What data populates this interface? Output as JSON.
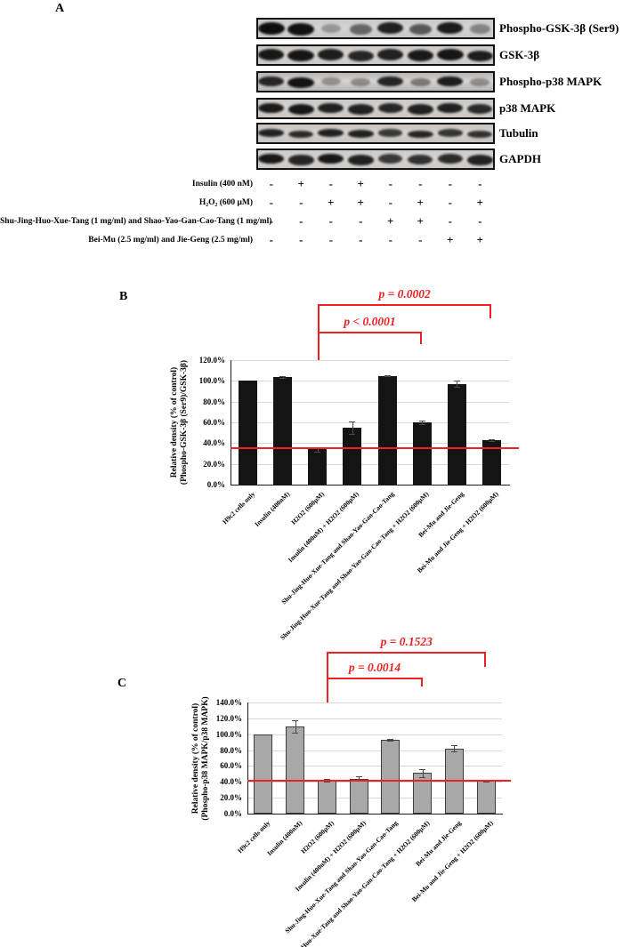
{
  "figure": {
    "panel_a_label": "A",
    "panel_b_label": "B",
    "panel_c_label": "C"
  },
  "panelA": {
    "blots": [
      {
        "label": "Phospho-GSK-3β (Ser9)",
        "bg": "#cbc9c7",
        "band_h": 14,
        "bands": [
          1.0,
          0.98,
          0.3,
          0.55,
          0.9,
          0.62,
          0.93,
          0.4
        ]
      },
      {
        "label": "GSK-3β",
        "bg": "#ccc9c6",
        "band_h": 13,
        "bands": [
          0.95,
          0.96,
          0.92,
          0.88,
          0.9,
          0.94,
          0.96,
          0.92
        ]
      },
      {
        "label": "Phospho-p38 MAPK",
        "bg": "#b9b4b1",
        "band_h": 12,
        "bands": [
          0.88,
          0.97,
          0.33,
          0.36,
          0.88,
          0.45,
          0.92,
          0.35
        ]
      },
      {
        "label": "p38 MAPK",
        "bg": "#c9c6c3",
        "band_h": 12,
        "bands": [
          0.93,
          0.95,
          0.9,
          0.9,
          0.87,
          0.9,
          0.9,
          0.85
        ]
      },
      {
        "label": "Tubulin",
        "bg": "#c6c2bf",
        "band_h": 9,
        "bands": [
          0.9,
          0.85,
          0.9,
          0.9,
          0.78,
          0.88,
          0.8,
          0.82
        ]
      },
      {
        "label": "GAPDH",
        "bg": "#ccc9c6",
        "band_h": 12,
        "bands": [
          0.95,
          0.88,
          0.95,
          0.9,
          0.78,
          0.82,
          0.85,
          0.9
        ]
      }
    ],
    "treatments": [
      {
        "label": "Insulin (400 nM)",
        "marks": [
          "-",
          "+",
          "-",
          "+",
          "-",
          "-",
          "-",
          "-"
        ]
      },
      {
        "label": "H₂O₂ (600 μM)",
        "marks": [
          "-",
          "-",
          "+",
          "+",
          "-",
          "+",
          "-",
          "+"
        ]
      },
      {
        "label": "Shu-Jing-Huo-Xue-Tang (1 mg/ml) and Shao-Yao-Gan-Cao-Tang (1 mg/ml)",
        "marks": [
          "-",
          "-",
          "-",
          "-",
          "+",
          "+",
          "-",
          "-"
        ]
      },
      {
        "label": "Bei-Mu (2.5 mg/ml) and Jie-Geng (2.5 mg/ml)",
        "marks": [
          "-",
          "-",
          "-",
          "-",
          "-",
          "-",
          "+",
          "+"
        ]
      }
    ]
  },
  "chart_data": [
    {
      "id": "B",
      "type": "bar",
      "title": "",
      "ylabel_line1": "Relative density (% of control)",
      "ylabel_line2": "(Phospho-GSK-3β (Ser9)/GSK-3β)",
      "categories": [
        "H9c2 cells only",
        "Insulin (400nM)",
        "H2O2 (600µM)",
        "Insulin (400nM) + H2O2 (600µM)",
        "Shu-Jing-Huo-Xue-Tang and Shao-Yao-Gan-Cao-Tang",
        "Shu-Jing-Huo-Xue-Tang and Shao-Yao-Gan-Cao-Tang + H2O2 (600µM)",
        "Bei-Mu and Jie-Geng",
        "Bei-Mu and Jie-Geng + H2O2 (600µM)"
      ],
      "values": [
        100,
        104,
        34,
        55,
        105,
        60,
        97,
        43
      ],
      "errors": [
        0,
        1,
        2,
        6,
        0.5,
        1.5,
        3,
        1
      ],
      "ylim": [
        0,
        120
      ],
      "yticks": [
        "0.0%",
        "20.0%",
        "40.0%",
        "60.0%",
        "80.0%",
        "100.0%",
        "120.0%"
      ],
      "grid": true,
      "bar_color": "#141414",
      "bar_border": "#141414",
      "baseline_value": 35,
      "baseline_color": "#f02020",
      "annotations": [
        {
          "text": "p = 0.0002",
          "from_index": 2,
          "to_index": 7
        },
        {
          "text": "p < 0.0001",
          "from_index": 2,
          "to_index": 5
        }
      ]
    },
    {
      "id": "C",
      "type": "bar",
      "title": "",
      "ylabel_line1": "Relative density (% of control)",
      "ylabel_line2": "(Phospho-p38 MAPK/p38 MAPK)",
      "categories": [
        "H9c2 cells only",
        "Insulin (400nM)",
        "H2O2 (600µM)",
        "Insulin (400nM) + H2O2 (600µM)",
        "Shu-Jing-Huo-Xue-Tang and Shao-Yao-Gan-Cao-Tang",
        "Shu-Jing-Huo-Xue-Tang and Shao-Yao-Gan-Cao-Tang + H2O2 (600µM)",
        "Bei-Mu and Jie-Geng",
        "Bei-Mu and Jie-Geng + H2O2 (600µM)"
      ],
      "values": [
        100,
        110,
        42,
        44,
        93,
        51,
        82,
        41
      ],
      "errors": [
        0,
        8,
        1.5,
        3,
        1,
        5,
        4,
        1
      ],
      "ylim": [
        0,
        140
      ],
      "yticks": [
        "0.0%",
        "20.0%",
        "40.0%",
        "60.0%",
        "80.0%",
        "100.0%",
        "120.0%",
        "140.0%"
      ],
      "grid": true,
      "bar_color": "#a8a8a8",
      "bar_border": "#3f3f3f",
      "baseline_value": 41,
      "baseline_color": "#f02020",
      "annotations": [
        {
          "text": "p = 0.1523",
          "from_index": 2,
          "to_index": 7
        },
        {
          "text": "p = 0.0014",
          "from_index": 2,
          "to_index": 5
        }
      ]
    }
  ]
}
